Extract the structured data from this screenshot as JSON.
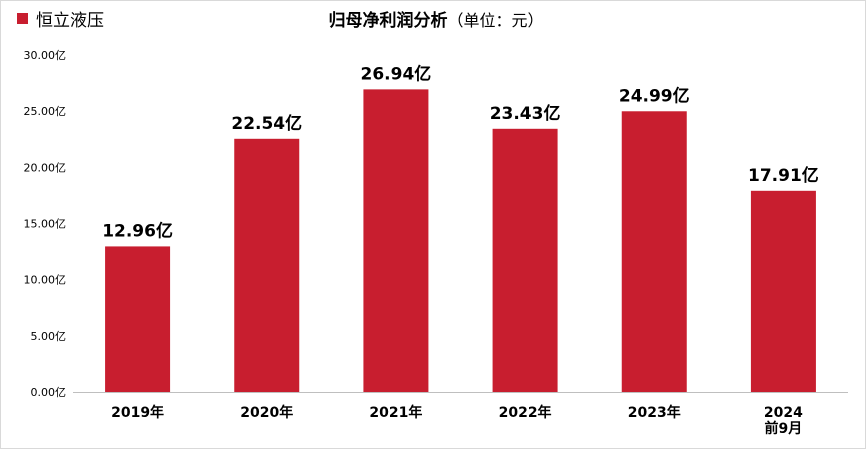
{
  "chart_data": {
    "type": "bar",
    "title": "归母净利润分析",
    "title_unit": "（单位：元）",
    "legend": [
      {
        "name": "恒立液压",
        "color": "#C81E2F"
      }
    ],
    "categories": [
      [
        "2019年"
      ],
      [
        "2020年"
      ],
      [
        "2021年"
      ],
      [
        "2022年"
      ],
      [
        "2023年"
      ],
      [
        "2024",
        "前9月"
      ]
    ],
    "values": [
      12.96,
      22.54,
      26.94,
      23.43,
      24.99,
      17.91
    ],
    "data_labels": [
      "12.96亿",
      "22.54亿",
      "26.94亿",
      "23.43亿",
      "24.99亿",
      "17.91亿"
    ],
    "ylim": [
      0,
      30
    ],
    "yticks": [
      0,
      5,
      10,
      15,
      20,
      25,
      30
    ],
    "ytick_labels": [
      "0.00亿",
      "5.00亿",
      "10.00亿",
      "15.00亿",
      "20.00亿",
      "25.00亿",
      "30.00亿"
    ],
    "bar_color": "#C81E2F",
    "axis_color": "#BFBFBF",
    "grid": false
  }
}
